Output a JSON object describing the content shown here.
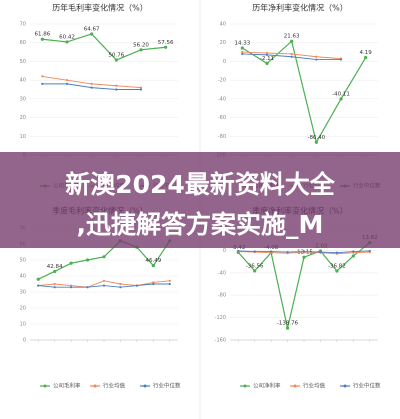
{
  "chart_data": [
    {
      "type": "line",
      "title": "历年毛利率变化情况（%）",
      "categories": [
        null,
        null,
        null,
        null,
        null,
        null
      ],
      "ylim": [
        0,
        70
      ],
      "yticks": [
        0,
        10,
        20,
        30,
        40,
        50,
        60,
        70
      ],
      "grid": true,
      "series": [
        {
          "name": "公司毛利率",
          "color": "#4caf50",
          "values": [
            61.86,
            60.42,
            64.67,
            50.76,
            56.2,
            57.56
          ],
          "value_labels": [
            "61.86",
            "60.42",
            "64.67",
            "50.76",
            "56.20",
            "57.56"
          ]
        },
        {
          "name": "行业均值",
          "color": "#f0895a",
          "values": [
            42,
            40,
            38,
            37,
            36,
            null
          ]
        },
        {
          "name": "行业中位数",
          "color": "#4a7fc1",
          "values": [
            38,
            38,
            36,
            35,
            35,
            null
          ]
        }
      ]
    },
    {
      "type": "line",
      "title": "历年净利率变化情况（%）",
      "categories": [
        null,
        null,
        null,
        null,
        null,
        null
      ],
      "ylim": [
        -100,
        40
      ],
      "yticks": [
        -100,
        -80,
        -60,
        -40,
        -20,
        0,
        20,
        40
      ],
      "grid": true,
      "series": [
        {
          "name": "公司净利率",
          "color": "#4caf50",
          "values": [
            14.33,
            -2.11,
            21.63,
            -86.4,
            -40.11,
            4.19
          ],
          "value_labels": [
            "14.33",
            "-2.11",
            "21.63",
            "-86.40",
            "-40.11",
            "4.19"
          ]
        },
        {
          "name": "行业均值",
          "color": "#f0895a",
          "values": [
            10,
            9,
            8,
            5,
            3,
            null
          ]
        },
        {
          "name": "行业中位数",
          "color": "#4a7fc1",
          "values": [
            8,
            7,
            5,
            2,
            2,
            null
          ]
        }
      ]
    },
    {
      "type": "line",
      "title": "季度毛利率变化情况（%）",
      "categories": [
        null,
        null,
        null,
        null,
        null,
        null,
        null,
        null,
        null
      ],
      "ylim": [
        0,
        70
      ],
      "yticks": [
        0,
        10,
        20,
        30,
        40,
        50,
        60,
        70
      ],
      "grid": true,
      "series": [
        {
          "name": "公司毛利率",
          "color": "#4caf50",
          "values": [
            38,
            42.84,
            48,
            50,
            52,
            62,
            58,
            46.49,
            62
          ],
          "value_labels": [
            null,
            "42.84",
            null,
            null,
            null,
            null,
            null,
            "46.49",
            null
          ]
        },
        {
          "name": "行业均值",
          "color": "#f0895a",
          "values": [
            34,
            35,
            34,
            33,
            37,
            35,
            34,
            36,
            37
          ]
        },
        {
          "name": "行业中位数",
          "color": "#4a7fc1",
          "values": [
            34,
            33,
            33,
            33,
            34,
            33,
            34,
            35,
            35
          ]
        }
      ]
    },
    {
      "type": "line",
      "title": "季度净利率变化情况（%）",
      "categories": [
        null,
        null,
        null,
        null,
        null,
        null,
        null,
        null,
        null
      ],
      "ylim": [
        -160,
        40
      ],
      "yticks": [
        -160,
        -120,
        -80,
        -40,
        0,
        40
      ],
      "grid": true,
      "series": [
        {
          "name": "公司净利率",
          "color": "#4caf50",
          "values": [
            -3.42,
            -36.56,
            -4.08,
            -138.76,
            -12.15,
            -1.03,
            -36.82,
            -10,
            13.82
          ],
          "value_labels": [
            "-3.42",
            "-36.56",
            "-4.08",
            "-138.76",
            "-12.15",
            "-1.03",
            "-36.82",
            null,
            "13.82"
          ]
        },
        {
          "name": "行业均值",
          "color": "#f0895a",
          "values": [
            -2,
            -3,
            -4,
            -5,
            -3,
            -4,
            -6,
            -4,
            -3
          ]
        },
        {
          "name": "行业中位数",
          "color": "#4a7fc1",
          "values": [
            -1,
            -2,
            -2,
            -3,
            -2,
            -3,
            -4,
            -2,
            -1
          ]
        }
      ]
    }
  ],
  "banner": {
    "lines": [
      "新澳2024最新资料大全",
      ",迅捷解答方案实施_M"
    ]
  }
}
